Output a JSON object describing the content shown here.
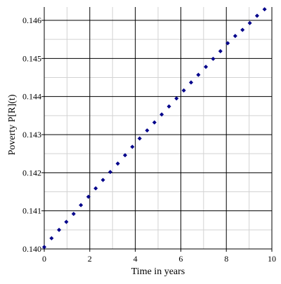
{
  "chart_data": {
    "type": "scatter",
    "title": "",
    "xlabel": "Time in years",
    "ylabel": "Poverty P[R](t)",
    "xlim": [
      0,
      10
    ],
    "ylim": [
      0.14,
      0.14635
    ],
    "x_ticks": [
      0,
      2,
      4,
      6,
      8,
      10
    ],
    "y_ticks": [
      0.14,
      0.141,
      0.142,
      0.143,
      0.144,
      0.145,
      0.146
    ],
    "x_tick_labels": [
      "0",
      "2",
      "4",
      "6",
      "8",
      "10"
    ],
    "y_tick_labels": [
      "0.140",
      "0.141",
      "0.142",
      "0.143",
      "0.144",
      "0.145",
      "0.146"
    ],
    "grid": true,
    "series": [
      {
        "color": "#00008B",
        "x": [
          0,
          0.32,
          0.65,
          0.97,
          1.29,
          1.61,
          1.94,
          2.26,
          2.58,
          2.9,
          3.23,
          3.55,
          3.87,
          4.19,
          4.52,
          4.84,
          5.16,
          5.48,
          5.81,
          6.13,
          6.45,
          6.77,
          7.1,
          7.42,
          7.74,
          8.06,
          8.39,
          8.71,
          9.03,
          9.35,
          9.68
        ],
        "y": [
          0.14005,
          0.14028,
          0.1405,
          0.14071,
          0.14092,
          0.14115,
          0.14137,
          0.14159,
          0.14181,
          0.14202,
          0.14224,
          0.14246,
          0.14268,
          0.1429,
          0.14311,
          0.14332,
          0.14353,
          0.14374,
          0.14395,
          0.14416,
          0.14437,
          0.14457,
          0.14478,
          0.14499,
          0.14519,
          0.1454,
          0.14559,
          0.14575,
          0.14593,
          0.14612,
          0.14629
        ]
      }
    ]
  }
}
